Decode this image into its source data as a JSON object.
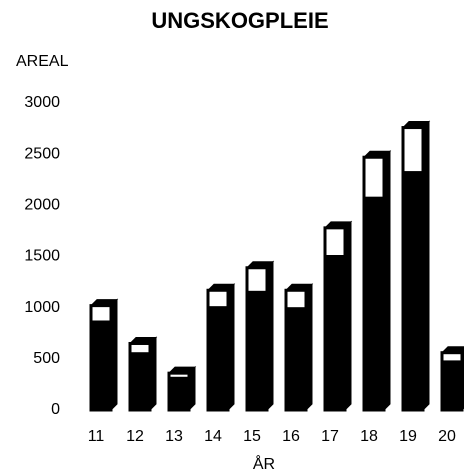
{
  "chart_data": {
    "type": "bar",
    "stacked": true,
    "title": "UNGSKOGPLEIE",
    "y_label": "AREAL",
    "x_label": "ÅR",
    "categories": [
      "11",
      "12",
      "13",
      "14",
      "15",
      "16",
      "17",
      "18",
      "19",
      "20"
    ],
    "series": [
      {
        "color": "#000000",
        "values": [
          860,
          550,
          310,
          1000,
          1150,
          990,
          1500,
          2070,
          2320,
          470
        ]
      },
      {
        "color": "#ffffff",
        "values": [
          160,
          100,
          50,
          170,
          240,
          180,
          280,
          400,
          440,
          90
        ]
      }
    ],
    "ylim": [
      0,
      3000
    ],
    "yticks": [
      0,
      500,
      1000,
      1500,
      2000,
      2500,
      3000
    ],
    "grid": false
  }
}
